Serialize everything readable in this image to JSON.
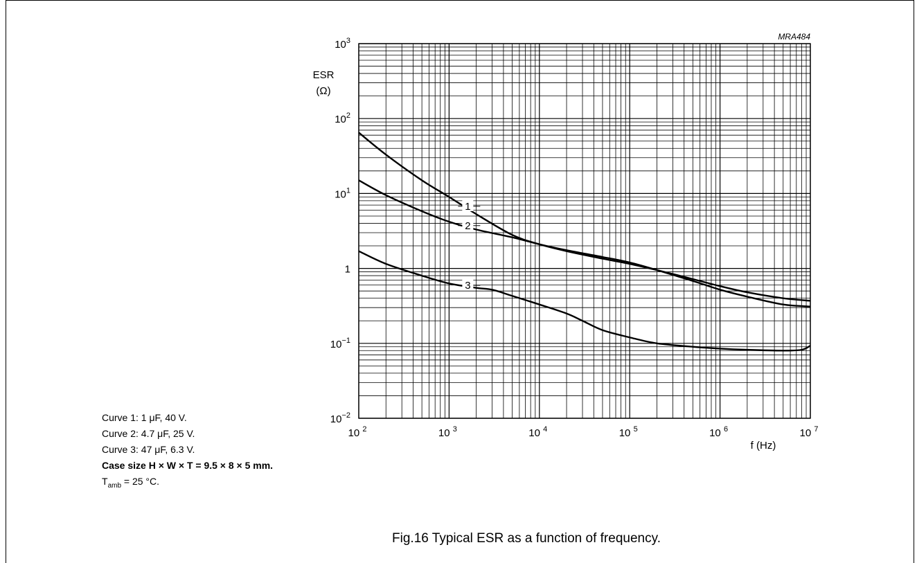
{
  "figure_code": "MRA484",
  "caption": "Fig.16  Typical ESR as a function of frequency.",
  "notes": {
    "curve1": "Curve 1: 1 μF, 40 V.",
    "curve2": "Curve 2: 4.7 μF, 25 V.",
    "curve3": "Curve 3: 47 μF, 6.3 V.",
    "case_size": "Case size H × W × T = 9.5 × 8 × 5 mm.",
    "tamb_symbol": "T",
    "tamb_sub": "amb",
    "tamb_rest": " = 25 °C."
  },
  "chart_data": {
    "type": "line",
    "x_scale": "log",
    "y_scale": "log",
    "xlim": [
      100,
      10000000
    ],
    "ylim": [
      0.01,
      1000
    ],
    "ylabel_line1": "ESR",
    "ylabel_line2": "(Ω)",
    "xlabel": "f  (Hz)",
    "grid": true,
    "x_ticks": [
      {
        "base": "10",
        "exp": "2"
      },
      {
        "base": "10",
        "exp": "3"
      },
      {
        "base": "10",
        "exp": "4"
      },
      {
        "base": "10",
        "exp": "5"
      },
      {
        "base": "10",
        "exp": "6"
      },
      {
        "base": "10",
        "exp": "7"
      }
    ],
    "y_ticks": [
      {
        "base": "10",
        "exp": "−2"
      },
      {
        "base": "10",
        "exp": "−1"
      },
      {
        "base": "1",
        "exp": ""
      },
      {
        "base": "10",
        "exp": "1"
      },
      {
        "base": "10",
        "exp": "2"
      },
      {
        "base": "10",
        "exp": "3"
      }
    ],
    "series": [
      {
        "name": "1",
        "label_at_x": 1500,
        "x": [
          100,
          200,
          500,
          1000,
          2000,
          5000,
          10000,
          20000,
          50000,
          100000,
          200000,
          500000,
          1000000,
          2000000,
          5000000,
          10000000
        ],
        "y": [
          65,
          33,
          15,
          9,
          5.3,
          2.8,
          2.1,
          1.7,
          1.35,
          1.15,
          0.95,
          0.72,
          0.58,
          0.48,
          0.4,
          0.37
        ]
      },
      {
        "name": "2",
        "label_at_x": 1500,
        "x": [
          100,
          200,
          500,
          1000,
          2000,
          5000,
          10000,
          20000,
          50000,
          100000,
          200000,
          500000,
          1000000,
          2000000,
          5000000,
          10000000
        ],
        "y": [
          15,
          9.5,
          5.8,
          4.2,
          3.3,
          2.6,
          2.1,
          1.75,
          1.42,
          1.2,
          0.95,
          0.68,
          0.52,
          0.42,
          0.33,
          0.31
        ]
      },
      {
        "name": "3",
        "label_at_x": 1500,
        "x": [
          100,
          200,
          500,
          1000,
          2000,
          3000,
          5000,
          10000,
          20000,
          30000,
          50000,
          100000,
          200000,
          500000,
          1000000,
          2000000,
          5000000,
          8000000,
          10000000
        ],
        "y": [
          1.7,
          1.15,
          0.8,
          0.63,
          0.55,
          0.52,
          0.43,
          0.33,
          0.25,
          0.2,
          0.15,
          0.12,
          0.1,
          0.09,
          0.085,
          0.082,
          0.08,
          0.082,
          0.093
        ]
      }
    ]
  }
}
